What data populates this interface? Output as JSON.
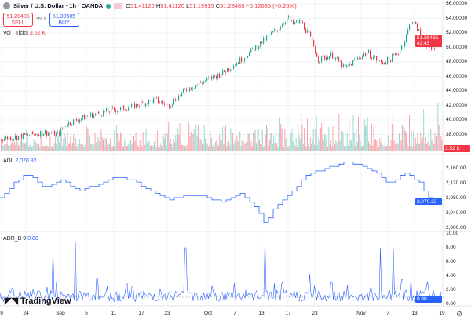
{
  "header": {
    "symbol": "Silver / U.S. Dollar · 1h · OANDA",
    "open_label": "O",
    "open": "51.41120",
    "high_label": "H",
    "high": "51.41120",
    "low_label": "L",
    "low": "51.19915",
    "close_label": "C",
    "close": "51.28485",
    "change": "−0.12685 (−0.25%)"
  },
  "trade": {
    "sell_price": "51.28485",
    "sell_label": "SELL",
    "spread": "302.0",
    "buy_price": "51.30505",
    "buy_label": "BUY"
  },
  "volume": {
    "label": "Vol · Ticks",
    "value": "3.52 K"
  },
  "adl": {
    "label": "ADL",
    "value": "2,070.32"
  },
  "adr": {
    "label": "ADR_B 9",
    "value": "0.80"
  },
  "price_tag": {
    "price": "51.28485",
    "countdown": "43:45"
  },
  "brand": "TradingView",
  "colors": {
    "up": "#22ab94",
    "down": "#f23645",
    "line": "#2962ff"
  },
  "chart_data": [
    {
      "type": "candlestick",
      "title": "Silver / U.S. Dollar · 1h · OANDA",
      "yaxis": [
        "56.00000",
        "54.00000",
        "52.00000",
        "50.00000",
        "48.00000",
        "46.00000",
        "44.00000",
        "42.00000",
        "40.00000",
        "38.00000"
      ],
      "ylim": [
        36,
        56.5
      ],
      "x": [
        0,
        0.05,
        0.1,
        0.13,
        0.15,
        0.2,
        0.25,
        0.3,
        0.35,
        0.38,
        0.42,
        0.47,
        0.5,
        0.55,
        0.6,
        0.63,
        0.65,
        0.66,
        0.68,
        0.7,
        0.72,
        0.75,
        0.78,
        0.81,
        0.83,
        0.86,
        0.88,
        0.9,
        0.915,
        0.93,
        0.945,
        0.96,
        0.975,
        0.99,
        1
      ],
      "close": [
        37.4,
        37.8,
        38.3,
        38.0,
        39.5,
        40.6,
        41.3,
        41.9,
        42.8,
        42.0,
        44.2,
        45.6,
        46.4,
        48.6,
        51.2,
        52.7,
        54.2,
        53.2,
        53.6,
        51.5,
        48.3,
        49.0,
        47.1,
        48.6,
        49.3,
        47.9,
        48.3,
        49.3,
        51.0,
        53.9,
        52.4,
        50.6,
        49.6,
        50.8,
        51.28
      ]
    },
    {
      "type": "bar",
      "title": "Vol · Ticks",
      "max": "3.52 K"
    },
    {
      "type": "line",
      "title": "ADL",
      "yaxis": [
        "2,160.00",
        "2,120.00",
        "2,080.00",
        "2,040.00",
        "2,000.00"
      ],
      "ylim": [
        1990,
        2175
      ],
      "x": [
        0,
        0.03,
        0.06,
        0.1,
        0.14,
        0.18,
        0.22,
        0.26,
        0.3,
        0.34,
        0.38,
        0.42,
        0.46,
        0.5,
        0.54,
        0.58,
        0.6,
        0.62,
        0.66,
        0.7,
        0.74,
        0.78,
        0.82,
        0.86,
        0.88,
        0.92,
        0.95,
        0.975,
        1
      ],
      "y": [
        2080,
        2120,
        2148,
        2110,
        2128,
        2098,
        2118,
        2140,
        2128,
        2098,
        2075,
        2088,
        2085,
        2070,
        2095,
        2055,
        2010,
        2055,
        2100,
        2150,
        2160,
        2180,
        2168,
        2140,
        2120,
        2152,
        2120,
        2070,
        2072
      ]
    },
    {
      "type": "line",
      "title": "ADR_B 9",
      "yaxis": [
        "10.00",
        "8.00",
        "6.00",
        "4.00",
        "2.00",
        "0.00"
      ],
      "ylim": [
        0,
        10
      ],
      "baseline": 1,
      "spikes": [
        [
          0.03,
          2.4
        ],
        [
          0.12,
          7.5
        ],
        [
          0.17,
          8.9
        ],
        [
          0.22,
          3.6
        ],
        [
          0.3,
          2.5
        ],
        [
          0.42,
          8.0
        ],
        [
          0.48,
          2.6
        ],
        [
          0.53,
          3.0
        ],
        [
          0.6,
          9.2
        ],
        [
          0.62,
          3.0
        ],
        [
          0.7,
          4.3
        ],
        [
          0.75,
          3.2
        ],
        [
          0.86,
          8.0
        ],
        [
          0.89,
          7.9
        ],
        [
          0.91,
          3.5
        ],
        [
          0.93,
          3.6
        ],
        [
          0.99,
          0.8
        ]
      ]
    }
  ],
  "time_axis": [
    "9",
    "24",
    "Sep",
    "5",
    "11",
    "17",
    "23",
    "Oct",
    "7",
    "13",
    "17",
    "23",
    "Nov",
    "7",
    "13",
    "19"
  ]
}
